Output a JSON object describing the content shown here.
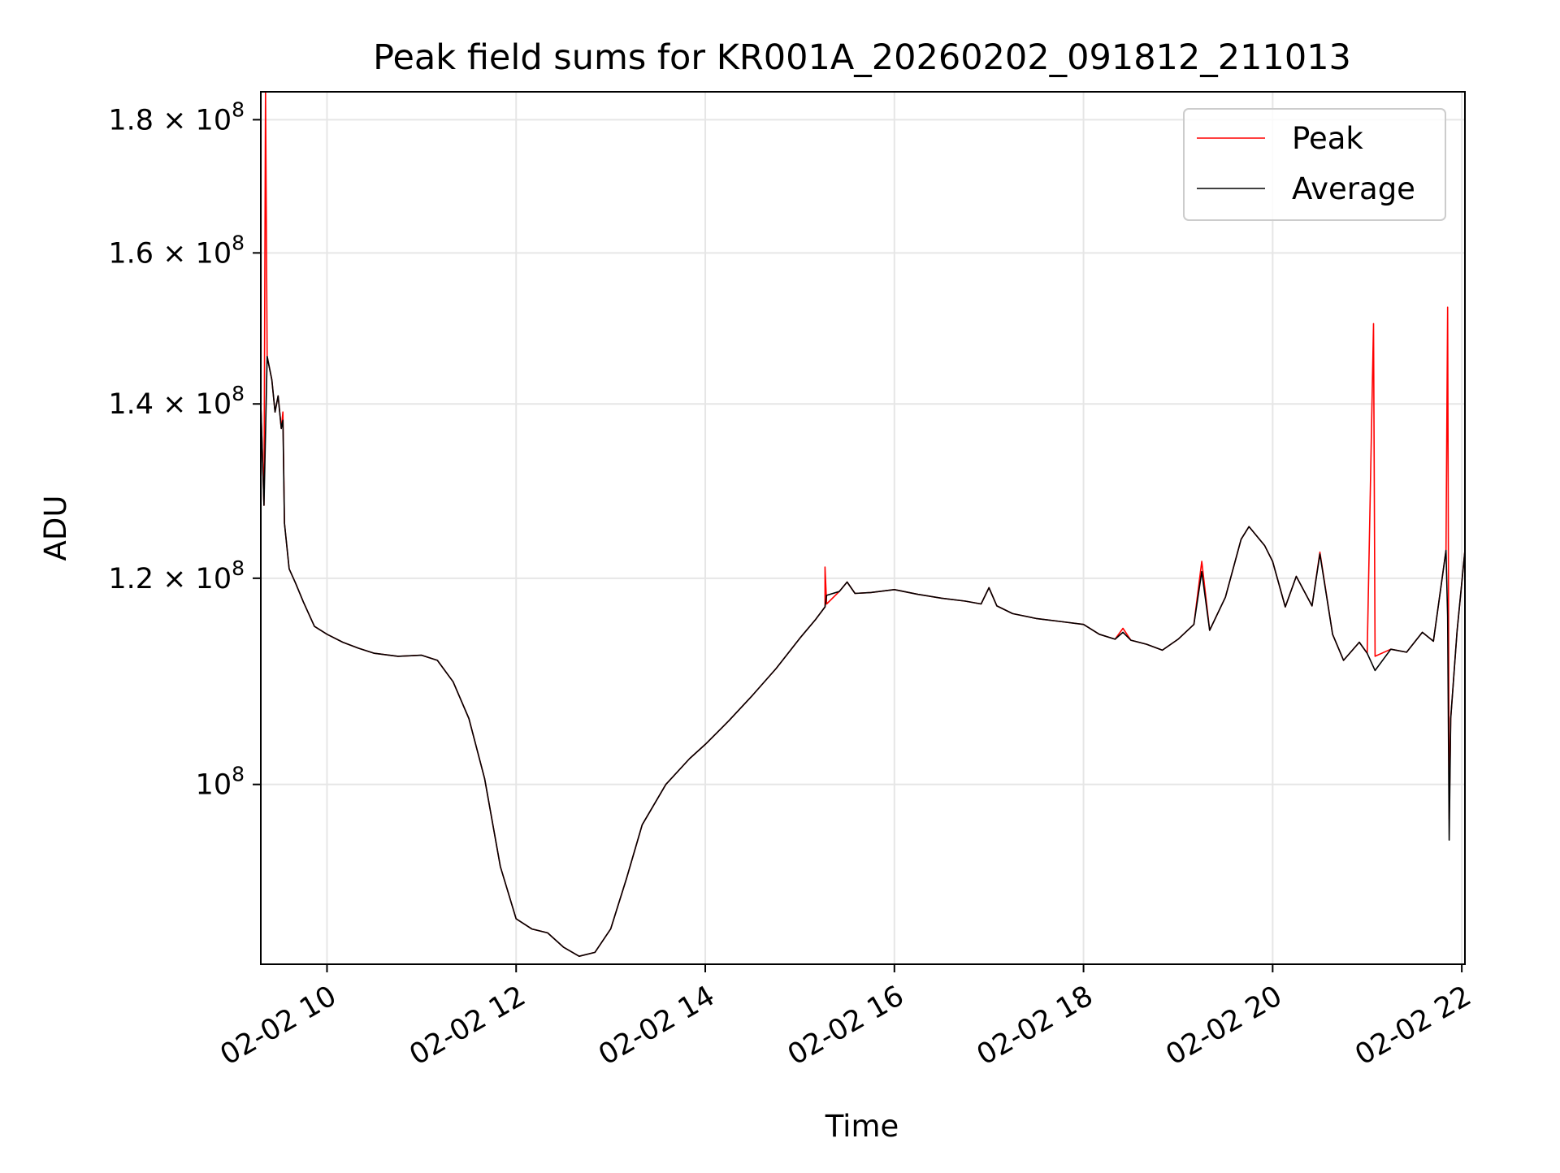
{
  "chart_data": {
    "type": "line",
    "title": "Peak field sums for KR001A_20260202_091812_211013",
    "xlabel": "Time",
    "ylabel": "ADU",
    "y_scale": "log",
    "x_tick_labels": [
      "02-02 10",
      "02-02 12",
      "02-02 14",
      "02-02 16",
      "02-02 18",
      "02-02 20",
      "02-02 22"
    ],
    "x_ticks": [
      "2026-02-02 10:00",
      "2026-02-02 12:00",
      "2026-02-02 14:00",
      "2026-02-02 16:00",
      "2026-02-02 18:00",
      "2026-02-02 20:00",
      "2026-02-02 22:00"
    ],
    "y_ticks": [
      {
        "value": 100000000,
        "mantissa": "10",
        "prefix": "",
        "exp": "8"
      },
      {
        "value": 120000000,
        "mantissa": "1.2",
        "prefix": "1.2 × ",
        "exp": "8"
      },
      {
        "value": 140000000,
        "mantissa": "1.4",
        "prefix": "1.4 × ",
        "exp": "8"
      },
      {
        "value": 160000000,
        "mantissa": "1.6",
        "prefix": "1.6 × ",
        "exp": "8"
      },
      {
        "value": 180000000,
        "mantissa": "1.8",
        "prefix": "1.8 × ",
        "exp": "8"
      }
    ],
    "xlim": [
      "2026-02-02 09:18",
      "2026-02-02 22:02"
    ],
    "ylim": [
      85300000,
      184500000
    ],
    "grid": true,
    "legend_position": "top-right",
    "series": [
      {
        "name": "Peak",
        "color": "#ff0000",
        "points": [
          [
            "2026-02-02 09:18",
            140000000
          ],
          [
            "2026-02-02 09:20",
            128000000
          ],
          [
            "2026-02-02 09:21",
            185000000
          ],
          [
            "2026-02-02 09:22",
            146000000
          ],
          [
            "2026-02-02 09:25",
            143000000
          ],
          [
            "2026-02-02 09:27",
            139000000
          ],
          [
            "2026-02-02 09:29",
            141000000
          ],
          [
            "2026-02-02 09:31",
            137000000
          ],
          [
            "2026-02-02 09:32",
            139000000
          ],
          [
            "2026-02-02 09:33",
            126000000
          ],
          [
            "2026-02-02 09:36",
            121000000
          ],
          [
            "2026-02-02 09:40",
            119500000
          ],
          [
            "2026-02-02 09:45",
            117500000
          ],
          [
            "2026-02-02 09:52",
            115000000
          ],
          [
            "2026-02-02 10:00",
            114200000
          ],
          [
            "2026-02-02 10:10",
            113400000
          ],
          [
            "2026-02-02 10:20",
            112800000
          ],
          [
            "2026-02-02 10:30",
            112300000
          ],
          [
            "2026-02-02 10:45",
            112000000
          ],
          [
            "2026-02-02 11:00",
            112100000
          ],
          [
            "2026-02-02 11:10",
            111600000
          ],
          [
            "2026-02-02 11:20",
            109500000
          ],
          [
            "2026-02-02 11:30",
            106000000
          ],
          [
            "2026-02-02 11:40",
            100500000
          ],
          [
            "2026-02-02 11:50",
            93000000
          ],
          [
            "2026-02-02 12:00",
            88800000
          ],
          [
            "2026-02-02 12:10",
            88000000
          ],
          [
            "2026-02-02 12:20",
            87700000
          ],
          [
            "2026-02-02 12:30",
            86600000
          ],
          [
            "2026-02-02 12:40",
            85900000
          ],
          [
            "2026-02-02 12:50",
            86200000
          ],
          [
            "2026-02-02 13:00",
            88000000
          ],
          [
            "2026-02-02 13:10",
            92000000
          ],
          [
            "2026-02-02 13:20",
            96500000
          ],
          [
            "2026-02-02 13:35",
            100000000
          ],
          [
            "2026-02-02 13:50",
            102300000
          ],
          [
            "2026-02-02 14:00",
            103600000
          ],
          [
            "2026-02-02 14:15",
            105800000
          ],
          [
            "2026-02-02 14:30",
            108200000
          ],
          [
            "2026-02-02 14:45",
            110800000
          ],
          [
            "2026-02-02 15:00",
            113800000
          ],
          [
            "2026-02-02 15:10",
            115700000
          ],
          [
            "2026-02-02 15:16",
            117000000
          ],
          [
            "2026-02-02 15:16",
            121200000
          ],
          [
            "2026-02-02 15:17",
            117300000
          ],
          [
            "2026-02-02 15:25",
            118600000
          ],
          [
            "2026-02-02 15:30",
            119600000
          ],
          [
            "2026-02-02 15:35",
            118400000
          ],
          [
            "2026-02-02 15:45",
            118500000
          ],
          [
            "2026-02-02 16:00",
            118800000
          ],
          [
            "2026-02-02 16:15",
            118300000
          ],
          [
            "2026-02-02 16:30",
            117900000
          ],
          [
            "2026-02-02 16:45",
            117600000
          ],
          [
            "2026-02-02 16:55",
            117300000
          ],
          [
            "2026-02-02 17:00",
            119000000
          ],
          [
            "2026-02-02 17:05",
            117100000
          ],
          [
            "2026-02-02 17:15",
            116300000
          ],
          [
            "2026-02-02 17:30",
            115800000
          ],
          [
            "2026-02-02 17:45",
            115500000
          ],
          [
            "2026-02-02 18:00",
            115200000
          ],
          [
            "2026-02-02 18:10",
            114200000
          ],
          [
            "2026-02-02 18:20",
            113700000
          ],
          [
            "2026-02-02 18:25",
            114800000
          ],
          [
            "2026-02-02 18:30",
            113600000
          ],
          [
            "2026-02-02 18:40",
            113200000
          ],
          [
            "2026-02-02 18:50",
            112600000
          ],
          [
            "2026-02-02 19:00",
            113700000
          ],
          [
            "2026-02-02 19:10",
            115200000
          ],
          [
            "2026-02-02 19:15",
            121800000
          ],
          [
            "2026-02-02 19:20",
            114600000
          ],
          [
            "2026-02-02 19:30",
            118000000
          ],
          [
            "2026-02-02 19:40",
            124200000
          ],
          [
            "2026-02-02 19:45",
            125600000
          ],
          [
            "2026-02-02 19:55",
            123500000
          ],
          [
            "2026-02-02 20:00",
            121800000
          ],
          [
            "2026-02-02 20:08",
            117000000
          ],
          [
            "2026-02-02 20:15",
            120200000
          ],
          [
            "2026-02-02 20:25",
            117100000
          ],
          [
            "2026-02-02 20:30",
            122800000
          ],
          [
            "2026-02-02 20:38",
            114200000
          ],
          [
            "2026-02-02 20:45",
            111600000
          ],
          [
            "2026-02-02 20:55",
            113400000
          ],
          [
            "2026-02-02 21:00",
            112300000
          ],
          [
            "2026-02-02 21:04",
            150300000
          ],
          [
            "2026-02-02 21:05",
            112000000
          ],
          [
            "2026-02-02 21:15",
            112700000
          ],
          [
            "2026-02-02 21:25",
            112400000
          ],
          [
            "2026-02-02 21:35",
            114400000
          ],
          [
            "2026-02-02 21:42",
            113500000
          ],
          [
            "2026-02-02 21:50",
            123000000
          ],
          [
            "2026-02-02 21:51",
            152500000
          ],
          [
            "2026-02-02 21:52",
            97000000
          ],
          [
            "2026-02-02 21:53",
            106000000
          ],
          [
            "2026-02-02 21:57",
            114500000
          ],
          [
            "2026-02-02 22:02",
            123000000
          ]
        ]
      },
      {
        "name": "Average",
        "color": "#000000",
        "points": [
          [
            "2026-02-02 09:18",
            140000000
          ],
          [
            "2026-02-02 09:20",
            128000000
          ],
          [
            "2026-02-02 09:22",
            146000000
          ],
          [
            "2026-02-02 09:25",
            143000000
          ],
          [
            "2026-02-02 09:27",
            139000000
          ],
          [
            "2026-02-02 09:29",
            141000000
          ],
          [
            "2026-02-02 09:31",
            137000000
          ],
          [
            "2026-02-02 09:32",
            138000000
          ],
          [
            "2026-02-02 09:33",
            126000000
          ],
          [
            "2026-02-02 09:36",
            121000000
          ],
          [
            "2026-02-02 09:40",
            119500000
          ],
          [
            "2026-02-02 09:45",
            117500000
          ],
          [
            "2026-02-02 09:52",
            115000000
          ],
          [
            "2026-02-02 10:00",
            114200000
          ],
          [
            "2026-02-02 10:10",
            113400000
          ],
          [
            "2026-02-02 10:20",
            112800000
          ],
          [
            "2026-02-02 10:30",
            112300000
          ],
          [
            "2026-02-02 10:45",
            112000000
          ],
          [
            "2026-02-02 11:00",
            112100000
          ],
          [
            "2026-02-02 11:10",
            111600000
          ],
          [
            "2026-02-02 11:20",
            109500000
          ],
          [
            "2026-02-02 11:30",
            106000000
          ],
          [
            "2026-02-02 11:40",
            100500000
          ],
          [
            "2026-02-02 11:50",
            93000000
          ],
          [
            "2026-02-02 12:00",
            88800000
          ],
          [
            "2026-02-02 12:10",
            88000000
          ],
          [
            "2026-02-02 12:20",
            87700000
          ],
          [
            "2026-02-02 12:30",
            86600000
          ],
          [
            "2026-02-02 12:40",
            85900000
          ],
          [
            "2026-02-02 12:50",
            86200000
          ],
          [
            "2026-02-02 13:00",
            88000000
          ],
          [
            "2026-02-02 13:10",
            92000000
          ],
          [
            "2026-02-02 13:20",
            96500000
          ],
          [
            "2026-02-02 13:35",
            100000000
          ],
          [
            "2026-02-02 13:50",
            102300000
          ],
          [
            "2026-02-02 14:00",
            103600000
          ],
          [
            "2026-02-02 14:15",
            105800000
          ],
          [
            "2026-02-02 14:30",
            108200000
          ],
          [
            "2026-02-02 14:45",
            110800000
          ],
          [
            "2026-02-02 15:00",
            113800000
          ],
          [
            "2026-02-02 15:10",
            115700000
          ],
          [
            "2026-02-02 15:16",
            117000000
          ],
          [
            "2026-02-02 15:17",
            118200000
          ],
          [
            "2026-02-02 15:25",
            118600000
          ],
          [
            "2026-02-02 15:30",
            119600000
          ],
          [
            "2026-02-02 15:35",
            118400000
          ],
          [
            "2026-02-02 15:45",
            118500000
          ],
          [
            "2026-02-02 16:00",
            118800000
          ],
          [
            "2026-02-02 16:15",
            118300000
          ],
          [
            "2026-02-02 16:30",
            117900000
          ],
          [
            "2026-02-02 16:45",
            117600000
          ],
          [
            "2026-02-02 16:55",
            117300000
          ],
          [
            "2026-02-02 17:00",
            119000000
          ],
          [
            "2026-02-02 17:05",
            117100000
          ],
          [
            "2026-02-02 17:15",
            116300000
          ],
          [
            "2026-02-02 17:30",
            115800000
          ],
          [
            "2026-02-02 17:45",
            115500000
          ],
          [
            "2026-02-02 18:00",
            115200000
          ],
          [
            "2026-02-02 18:10",
            114200000
          ],
          [
            "2026-02-02 18:20",
            113700000
          ],
          [
            "2026-02-02 18:25",
            114400000
          ],
          [
            "2026-02-02 18:30",
            113600000
          ],
          [
            "2026-02-02 18:40",
            113200000
          ],
          [
            "2026-02-02 18:50",
            112600000
          ],
          [
            "2026-02-02 19:00",
            113700000
          ],
          [
            "2026-02-02 19:10",
            115200000
          ],
          [
            "2026-02-02 19:15",
            120700000
          ],
          [
            "2026-02-02 19:20",
            114600000
          ],
          [
            "2026-02-02 19:30",
            118000000
          ],
          [
            "2026-02-02 19:40",
            124200000
          ],
          [
            "2026-02-02 19:45",
            125600000
          ],
          [
            "2026-02-02 19:55",
            123500000
          ],
          [
            "2026-02-02 20:00",
            121800000
          ],
          [
            "2026-02-02 20:08",
            117000000
          ],
          [
            "2026-02-02 20:15",
            120200000
          ],
          [
            "2026-02-02 20:25",
            117100000
          ],
          [
            "2026-02-02 20:30",
            122600000
          ],
          [
            "2026-02-02 20:38",
            114200000
          ],
          [
            "2026-02-02 20:45",
            111600000
          ],
          [
            "2026-02-02 20:55",
            113400000
          ],
          [
            "2026-02-02 21:00",
            112300000
          ],
          [
            "2026-02-02 21:05",
            110600000
          ],
          [
            "2026-02-02 21:15",
            112700000
          ],
          [
            "2026-02-02 21:25",
            112400000
          ],
          [
            "2026-02-02 21:35",
            114400000
          ],
          [
            "2026-02-02 21:42",
            113500000
          ],
          [
            "2026-02-02 21:50",
            123000000
          ],
          [
            "2026-02-02 21:51",
            116000000
          ],
          [
            "2026-02-02 21:52",
            95200000
          ],
          [
            "2026-02-02 21:53",
            106000000
          ],
          [
            "2026-02-02 21:57",
            114500000
          ],
          [
            "2026-02-02 22:02",
            123000000
          ]
        ]
      }
    ]
  }
}
